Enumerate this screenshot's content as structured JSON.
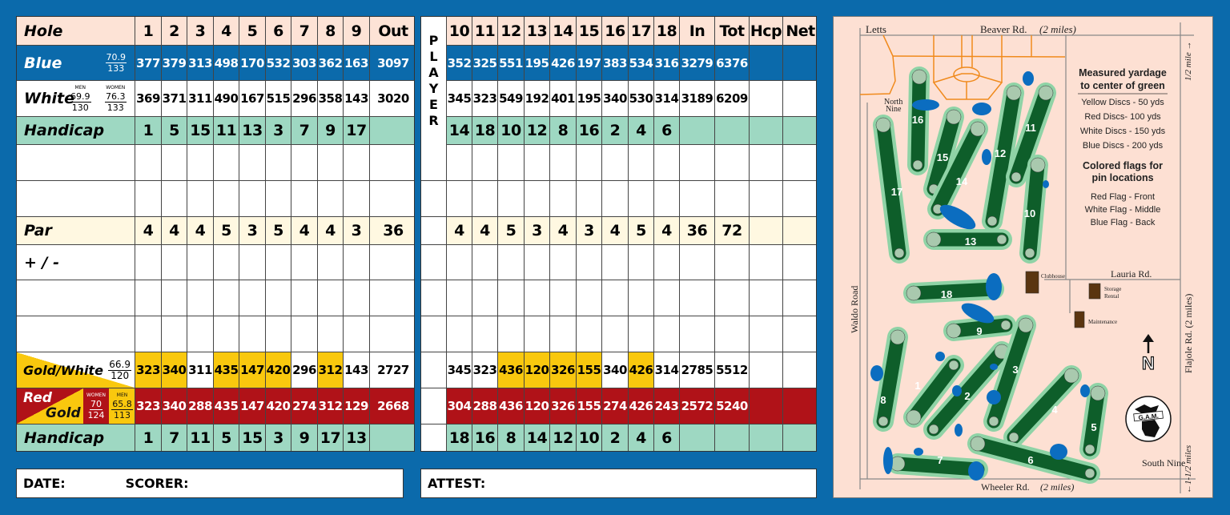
{
  "front": {
    "hole_label": "Hole",
    "holes": [
      "1",
      "2",
      "3",
      "4",
      "5",
      "6",
      "7",
      "8",
      "9",
      "Out"
    ],
    "blue": {
      "label": "Blue",
      "rating": "70.9",
      "slope": "133",
      "yards": [
        "377",
        "379",
        "313",
        "498",
        "170",
        "532",
        "303",
        "362",
        "163",
        "3097"
      ]
    },
    "white": {
      "label": "White",
      "men_caption": "MEN",
      "men_rating": "69.9",
      "men_slope": "130",
      "women_caption": "WOMEN",
      "women_rating": "76.3",
      "women_slope": "133",
      "yards": [
        "369",
        "371",
        "311",
        "490",
        "167",
        "515",
        "296",
        "358",
        "143",
        "3020"
      ]
    },
    "handicap": {
      "label": "Handicap",
      "values": [
        "1",
        "5",
        "15",
        "11",
        "13",
        "3",
        "7",
        "9",
        "17",
        ""
      ]
    },
    "par": {
      "label": "Par",
      "values": [
        "4",
        "4",
        "4",
        "5",
        "3",
        "5",
        "4",
        "4",
        "3",
        "36"
      ]
    },
    "plusminus": {
      "label": "+ / -"
    },
    "gold_white": {
      "label": "Gold/White",
      "rating": "66.9",
      "slope": "120",
      "yards": [
        "323",
        "340",
        "311",
        "435",
        "147",
        "420",
        "296",
        "312",
        "143",
        "2727"
      ],
      "gold_cells": [
        0,
        1,
        3,
        4,
        5,
        7
      ]
    },
    "red_gold": {
      "label_red": "Red",
      "label_gold": "Gold",
      "women_caption": "WOMEN",
      "women_rating": "70",
      "women_slope": "124",
      "men_caption": "MEN",
      "men_rating": "65.8",
      "men_slope": "113",
      "yards": [
        "323",
        "340",
        "288",
        "435",
        "147",
        "420",
        "274",
        "312",
        "129",
        "2668"
      ]
    },
    "handicap2": {
      "label": "Handicap",
      "values": [
        "1",
        "7",
        "11",
        "5",
        "15",
        "3",
        "9",
        "17",
        "13",
        ""
      ]
    }
  },
  "back": {
    "player_letters": [
      "P",
      "L",
      "A",
      "Y",
      "E",
      "R"
    ],
    "holes": [
      "10",
      "11",
      "12",
      "13",
      "14",
      "15",
      "16",
      "17",
      "18",
      "In",
      "Tot",
      "Hcp",
      "Net"
    ],
    "blue": [
      "352",
      "325",
      "551",
      "195",
      "426",
      "197",
      "383",
      "534",
      "316",
      "3279",
      "6376",
      "",
      ""
    ],
    "white": [
      "345",
      "323",
      "549",
      "192",
      "401",
      "195",
      "340",
      "530",
      "314",
      "3189",
      "6209",
      "",
      ""
    ],
    "handicap": [
      "14",
      "18",
      "10",
      "12",
      "8",
      "16",
      "2",
      "4",
      "6",
      "",
      "",
      "",
      ""
    ],
    "par": [
      "4",
      "4",
      "5",
      "3",
      "4",
      "3",
      "4",
      "5",
      "4",
      "36",
      "72",
      "",
      ""
    ],
    "gold_white": [
      "345",
      "323",
      "436",
      "120",
      "326",
      "155",
      "340",
      "426",
      "314",
      "2785",
      "5512",
      "",
      ""
    ],
    "gold_cells": [
      2,
      3,
      4,
      5,
      7
    ],
    "red_gold": [
      "304",
      "288",
      "436",
      "120",
      "326",
      "155",
      "274",
      "426",
      "243",
      "2572",
      "5240",
      "",
      ""
    ],
    "handicap2": [
      "18",
      "16",
      "8",
      "14",
      "12",
      "10",
      "2",
      "4",
      "6",
      "",
      "",
      "",
      ""
    ]
  },
  "footer": {
    "date": "DATE:",
    "scorer": "SCORER:",
    "attest": "ATTEST:"
  },
  "map": {
    "roads": {
      "letts": "Letts",
      "beaver": "Beaver Rd.",
      "beaver_dist": "(2 miles)",
      "waldo": "Waldo Road",
      "lauria": "Lauria Rd.",
      "flajole": "Flajole Rd. (2 miles)",
      "wheeler": "Wheeler Rd.",
      "wheeler_dist": "(2 miles)",
      "half_mile": "1/2 mile →",
      "one_half_miles": "←1-1/2 miles"
    },
    "north_nine": [
      "North",
      "Nine"
    ],
    "south_nine": "South Nine",
    "buildings": {
      "clubhouse": "Clubhouse",
      "storage": [
        "Storage",
        "Rental"
      ],
      "maintenance": "Maintenance"
    },
    "legend": {
      "title": [
        "Measured yardage",
        "to center of green"
      ],
      "discs": [
        "Yellow Discs - 50 yds",
        "Red Discs- 100 yds",
        "White Discs - 150 yds",
        "Blue Discs - 200 yds"
      ],
      "flags_title": [
        "Colored flags for",
        "pin locations"
      ],
      "flags": [
        "Red Flag - Front",
        "White Flag - Middle",
        "Blue Flag - Back"
      ]
    },
    "north_label": "N",
    "logo_text": "G.A.M.",
    "hole_numbers": [
      "16",
      "17",
      "15",
      "14",
      "12",
      "11",
      "10",
      "13",
      "18",
      "9",
      "8",
      "1",
      "2",
      "3",
      "4",
      "5",
      "7",
      "6"
    ],
    "colors": {
      "fairway": "#0e5e2a",
      "rough": "#8fd3a6",
      "green": "#a9c9ae",
      "water": "#0b6dc0",
      "sand": "#e9b27a",
      "building": "#5a3510",
      "subdivision": "#f08a1c"
    }
  }
}
